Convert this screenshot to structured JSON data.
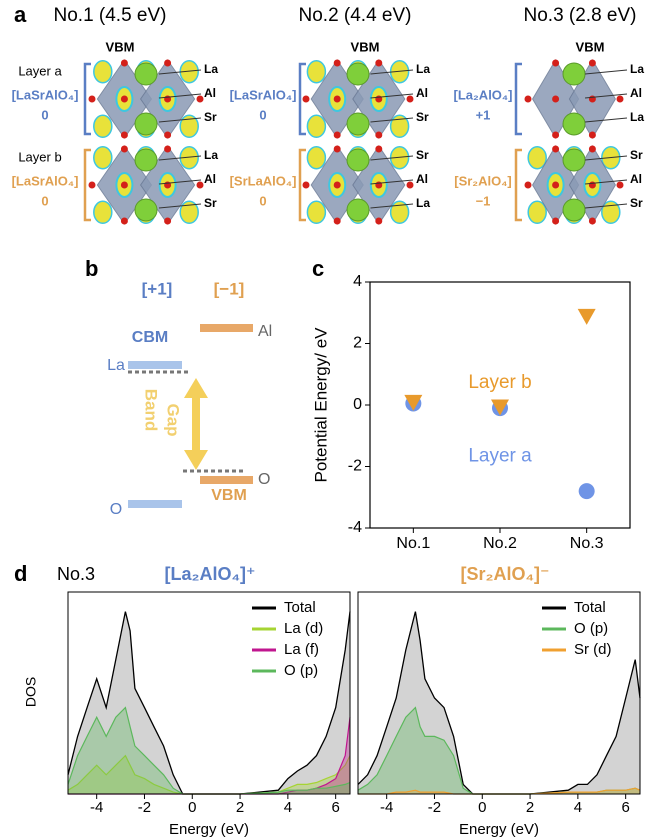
{
  "panel_a": {
    "label": "a",
    "layer_a_label": "Layer a",
    "layer_b_label": "Layer b",
    "columns": [
      {
        "title": "No.1 (4.5 eV)",
        "vbm": "VBM",
        "layer_a": {
          "formula": "[LaSrAlO₄]",
          "charge": "0",
          "atoms": [
            "La",
            "Al",
            "Sr"
          ]
        },
        "layer_b": {
          "formula": "[LaSrAlO₄]",
          "charge": "0",
          "atoms": [
            "La",
            "Al",
            "Sr"
          ]
        }
      },
      {
        "title": "No.2 (4.4 eV)",
        "vbm": "VBM",
        "layer_a": {
          "formula": "[LaSrAlO₄]",
          "charge": "0",
          "atoms": [
            "La",
            "Al",
            "Sr"
          ]
        },
        "layer_b": {
          "formula": "[SrLaAlO₄]",
          "charge": "0",
          "atoms": [
            "Sr",
            "Al",
            "La"
          ]
        }
      },
      {
        "title": "No.3 (2.8 eV)",
        "vbm": "VBM",
        "layer_a": {
          "formula": "[La₂AlO₄]",
          "charge": "+1",
          "atoms": [
            "La",
            "Al",
            "La"
          ]
        },
        "layer_b": {
          "formula": "[Sr₂AlO₄]",
          "charge": "−1",
          "atoms": [
            "Sr",
            "Al",
            "Sr"
          ]
        }
      }
    ]
  },
  "panel_b": {
    "label": "b",
    "plus": "[+1]",
    "minus": "[−1]",
    "cbm": "CBM",
    "la": "La",
    "al": "Al",
    "gap": [
      "Band",
      "Gap"
    ],
    "o_right": "O",
    "vbm": "VBM",
    "o_left": "O"
  },
  "panel_d": {
    "label": "d",
    "case": "No.3"
  },
  "chart_data": [
    {
      "type": "scatter",
      "label": "c",
      "y_label": "Potential Energy/ eV",
      "categories": [
        "No.1",
        "No.2",
        "No.3"
      ],
      "series": [
        {
          "name": "Layer a",
          "color": "#6f94e6",
          "marker": "o",
          "values": [
            0.05,
            -0.1,
            -2.8
          ]
        },
        {
          "name": "Layer b",
          "color": "#e89a2c",
          "marker": "v",
          "values": [
            0.1,
            -0.05,
            2.9
          ]
        }
      ],
      "ylim": [
        -4,
        4
      ],
      "yticks": [
        -4,
        -2,
        0,
        2,
        4
      ]
    },
    {
      "type": "area",
      "title": "[La₂AlO₄]⁺",
      "title_color": "#5a7ec4",
      "x_label": "Energy (eV)",
      "y_label": "DOS",
      "x": [
        -5.2,
        -4.8,
        -4.4,
        -4.0,
        -3.6,
        -3.2,
        -2.8,
        -2.6,
        -2.4,
        -2.0,
        -1.6,
        -1.2,
        -0.8,
        -0.4,
        0,
        2,
        3.6,
        4.0,
        4.4,
        4.8,
        5.2,
        5.6,
        6.0,
        6.4,
        6.6
      ],
      "series": [
        {
          "name": "Total",
          "color": "#000000",
          "values": [
            0.1,
            0.3,
            0.45,
            0.6,
            0.45,
            0.7,
            0.95,
            0.85,
            0.55,
            0.45,
            0.35,
            0.25,
            0.1,
            0,
            0,
            0,
            0.02,
            0.08,
            0.12,
            0.15,
            0.2,
            0.3,
            0.45,
            0.75,
            0.95
          ]
        },
        {
          "name": "La (d)",
          "color": "#a6d433",
          "values": [
            0.02,
            0.05,
            0.1,
            0.15,
            0.1,
            0.15,
            0.2,
            0.15,
            0.1,
            0.08,
            0.05,
            0.03,
            0.01,
            0,
            0,
            0,
            0.01,
            0.03,
            0.05,
            0.05,
            0.06,
            0.08,
            0.1,
            0.15,
            0.2
          ]
        },
        {
          "name": "La (f)",
          "color": "#c0168f",
          "values": [
            0,
            0,
            0,
            0,
            0,
            0,
            0,
            0,
            0,
            0,
            0,
            0,
            0,
            0,
            0,
            0,
            0,
            0.01,
            0.02,
            0.02,
            0.03,
            0.05,
            0.08,
            0.2,
            0.4
          ]
        },
        {
          "name": "O (p)",
          "color": "#5cb85c",
          "values": [
            0.05,
            0.2,
            0.3,
            0.4,
            0.3,
            0.4,
            0.45,
            0.35,
            0.25,
            0.2,
            0.15,
            0.1,
            0.03,
            0,
            0,
            0,
            0.01,
            0.02,
            0.02,
            0.02,
            0.03,
            0.03,
            0.04,
            0.05,
            0.06
          ]
        }
      ],
      "xlim": [
        -5.2,
        6.6
      ],
      "xticks": [
        -4,
        -2,
        0,
        2,
        4,
        6
      ],
      "ylim": [
        0,
        1
      ]
    },
    {
      "type": "area",
      "title": "[Sr₂AlO₄]⁻",
      "title_color": "#e0a050",
      "x_label": "Energy (eV)",
      "x": [
        -5.2,
        -4.8,
        -4.4,
        -4.0,
        -3.6,
        -3.2,
        -2.8,
        -2.6,
        -2.4,
        -2.0,
        -1.6,
        -1.2,
        -0.8,
        -0.4,
        0,
        2,
        3.6,
        4.0,
        4.4,
        4.8,
        5.2,
        5.6,
        6.0,
        6.4,
        6.6
      ],
      "series": [
        {
          "name": "Total",
          "color": "#000000",
          "values": [
            0.05,
            0.1,
            0.2,
            0.35,
            0.5,
            0.75,
            0.95,
            0.8,
            0.6,
            0.5,
            0.45,
            0.3,
            0.05,
            0,
            0,
            0,
            0.02,
            0.05,
            0.05,
            0.1,
            0.2,
            0.3,
            0.5,
            0.7,
            0.5
          ]
        },
        {
          "name": "O (p)",
          "color": "#5cb85c",
          "values": [
            0.02,
            0.05,
            0.1,
            0.2,
            0.3,
            0.4,
            0.45,
            0.35,
            0.3,
            0.3,
            0.28,
            0.2,
            0.03,
            0,
            0,
            0,
            0.01,
            0.01,
            0.01,
            0.01,
            0.02,
            0.02,
            0.02,
            0.03,
            0.02
          ]
        },
        {
          "name": "Sr (d)",
          "color": "#f0a030",
          "values": [
            0,
            0,
            0,
            0,
            0.01,
            0.01,
            0.02,
            0.01,
            0.01,
            0.01,
            0.01,
            0,
            0,
            0,
            0,
            0,
            0.01,
            0.01,
            0.01,
            0.01,
            0.02,
            0.02,
            0.02,
            0.03,
            0.02
          ]
        }
      ],
      "xlim": [
        -5.2,
        6.6
      ],
      "xticks": [
        -4,
        -2,
        0,
        2,
        4,
        6
      ],
      "ylim": [
        0,
        1
      ]
    }
  ]
}
